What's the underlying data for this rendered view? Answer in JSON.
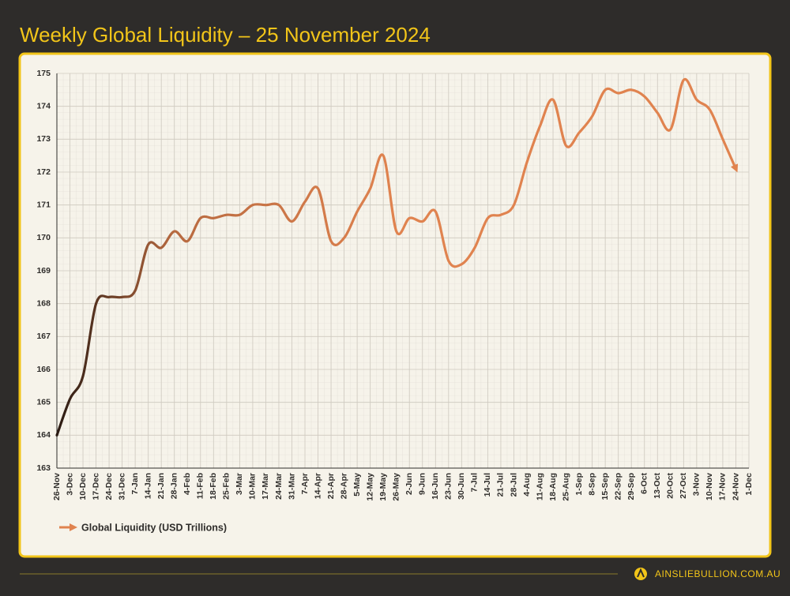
{
  "chart_data": {
    "type": "line",
    "title": "Weekly Global Liquidity – 25 November 2024",
    "categories": [
      "26-Nov",
      "3-Dec",
      "10-Dec",
      "17-Dec",
      "24-Dec",
      "31-Dec",
      "7-Jan",
      "14-Jan",
      "21-Jan",
      "28-Jan",
      "4-Feb",
      "11-Feb",
      "18-Feb",
      "25-Feb",
      "3-Mar",
      "10-Mar",
      "17-Mar",
      "24-Mar",
      "31-Mar",
      "7-Apr",
      "14-Apr",
      "21-Apr",
      "28-Apr",
      "5-May",
      "12-May",
      "19-May",
      "26-May",
      "2-Jun",
      "9-Jun",
      "16-Jun",
      "23-Jun",
      "30-Jun",
      "7-Jul",
      "14-Jul",
      "21-Jul",
      "28-Jul",
      "4-Aug",
      "11-Aug",
      "18-Aug",
      "25-Aug",
      "1-Sep",
      "8-Sep",
      "15-Sep",
      "22-Sep",
      "29-Sep",
      "6-Oct",
      "13-Oct",
      "20-Oct",
      "27-Oct",
      "3-Nov",
      "10-Nov",
      "17-Nov",
      "24-Nov",
      "1-Dec"
    ],
    "series": [
      {
        "name": "Global Liquidity (USD Trillions)",
        "color": "#e0834f",
        "values": [
          164.0,
          165.1,
          165.8,
          168.0,
          168.2,
          168.2,
          168.4,
          169.8,
          169.7,
          170.2,
          169.9,
          170.6,
          170.6,
          170.7,
          170.7,
          171.0,
          171.0,
          171.0,
          170.5,
          171.1,
          171.5,
          169.9,
          170.0,
          170.8,
          171.5,
          172.5,
          170.2,
          170.6,
          170.5,
          170.8,
          169.3,
          169.2,
          169.7,
          170.6,
          170.7,
          171.0,
          172.3,
          173.4,
          174.2,
          172.8,
          173.2,
          173.7,
          174.5,
          174.4,
          174.5,
          174.3,
          173.8,
          173.3,
          174.8,
          174.2,
          173.9,
          173.0,
          172.1,
          null
        ]
      }
    ],
    "ylim": [
      163,
      175
    ],
    "yticks": [
      163,
      164,
      165,
      166,
      167,
      168,
      169,
      170,
      171,
      172,
      173,
      174,
      175
    ],
    "grid": true
  },
  "footer": {
    "brand": "AINSLIEBULLION.COM.AU"
  }
}
